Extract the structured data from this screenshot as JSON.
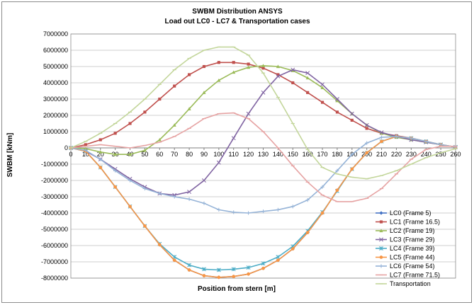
{
  "chart_data": {
    "type": "line",
    "title": "SWBM Distribution ANSYS",
    "subtitle": "Load out LC0 - LC7 & Transportation cases",
    "xlabel": "Position from stern [m]",
    "ylabel": "SWBM [kNm]",
    "xlim": [
      0,
      260
    ],
    "ylim": [
      -8000000,
      7000000
    ],
    "x_ticks": [
      0,
      10,
      20,
      30,
      40,
      50,
      60,
      70,
      80,
      90,
      100,
      110,
      120,
      130,
      140,
      150,
      160,
      170,
      180,
      190,
      200,
      210,
      220,
      230,
      240,
      250,
      260
    ],
    "y_ticks": [
      7000000,
      6000000,
      5000000,
      4000000,
      3000000,
      2000000,
      1000000,
      0,
      -1000000,
      -2000000,
      -3000000,
      -4000000,
      -5000000,
      -6000000,
      -7000000,
      -8000000
    ],
    "grid": true,
    "legend_position": "bottom-right",
    "series": [
      {
        "name": "LC0 (Frame 5)",
        "color": "#4472c4",
        "marker": "diamond",
        "x": [
          0,
          10,
          20,
          30,
          40,
          50,
          60,
          70,
          80,
          90,
          100,
          110,
          120,
          130,
          140,
          150,
          160,
          170,
          180,
          190,
          200,
          210,
          220,
          230,
          240,
          250,
          260
        ],
        "y": [
          0,
          -200000,
          -1200000,
          -2400000,
          -3600000,
          -4800000,
          -5950000,
          -6900000,
          -7500000,
          -7850000,
          -7950000,
          -7900000,
          -7750000,
          -7400000,
          -6900000,
          -6200000,
          -5200000,
          -4000000,
          -2600000,
          -1300000,
          -300000,
          400000,
          700000,
          600000,
          400000,
          200000,
          50000
        ]
      },
      {
        "name": "LC1 (Frame 16.5)",
        "color": "#c0504d",
        "marker": "square",
        "x": [
          0,
          10,
          20,
          30,
          40,
          50,
          60,
          70,
          80,
          90,
          100,
          110,
          120,
          130,
          140,
          150,
          160,
          170,
          180,
          190,
          200,
          210,
          220,
          230,
          240,
          250,
          260
        ],
        "y": [
          0,
          200000,
          500000,
          900000,
          1500000,
          2200000,
          3000000,
          3800000,
          4500000,
          5000000,
          5250000,
          5250000,
          5150000,
          4900000,
          4500000,
          4000000,
          3400000,
          2800000,
          2200000,
          1700000,
          1200000,
          900000,
          750000,
          600000,
          400000,
          200000,
          50000
        ]
      },
      {
        "name": "LC2 (Frame 19)",
        "color": "#9bbb59",
        "marker": "triangle",
        "x": [
          0,
          10,
          20,
          30,
          40,
          50,
          60,
          70,
          80,
          90,
          100,
          110,
          120,
          130,
          140,
          150,
          160,
          170,
          180,
          190,
          200,
          210,
          220,
          230,
          240,
          250,
          260
        ],
        "y": [
          0,
          -50000,
          -250000,
          -400000,
          -400000,
          -150000,
          500000,
          1400000,
          2400000,
          3400000,
          4150000,
          4650000,
          4950000,
          5050000,
          5000000,
          4750000,
          4300000,
          3700000,
          2900000,
          2100000,
          1400000,
          900000,
          650000,
          500000,
          350000,
          200000,
          50000
        ]
      },
      {
        "name": "LC3 (Frame 29)",
        "color": "#8064a2",
        "marker": "x",
        "x": [
          0,
          10,
          20,
          30,
          40,
          50,
          60,
          70,
          80,
          90,
          100,
          110,
          120,
          130,
          140,
          150,
          160,
          170,
          180,
          190,
          200,
          210,
          220,
          230,
          240,
          250,
          260
        ],
        "y": [
          0,
          -200000,
          -700000,
          -1300000,
          -1900000,
          -2400000,
          -2800000,
          -2900000,
          -2700000,
          -2000000,
          -900000,
          600000,
          2100000,
          3400000,
          4400000,
          4800000,
          4600000,
          3900000,
          3000000,
          2100000,
          1400000,
          950000,
          700000,
          500000,
          350000,
          200000,
          50000
        ]
      },
      {
        "name": "LC4 (Frame 39)",
        "color": "#4bacc6",
        "marker": "star",
        "x": [
          0,
          10,
          20,
          30,
          40,
          50,
          60,
          70,
          80,
          90,
          100,
          110,
          120,
          130,
          140,
          150,
          160,
          170,
          180,
          190,
          200,
          210,
          220,
          230,
          240,
          250,
          260
        ],
        "y": [
          0,
          -200000,
          -1200000,
          -2400000,
          -3600000,
          -4800000,
          -5900000,
          -6700000,
          -7200000,
          -7450000,
          -7500000,
          -7450000,
          -7350000,
          -7100000,
          -6700000,
          -6050000,
          -5100000,
          -3950000,
          -2650000,
          -1300000,
          -300000,
          400000,
          700000,
          600000,
          400000,
          200000,
          50000
        ]
      },
      {
        "name": "LC5 (Frame 44)",
        "color": "#f79646",
        "marker": "circle",
        "x": [
          0,
          10,
          20,
          30,
          40,
          50,
          60,
          70,
          80,
          90,
          100,
          110,
          120,
          130,
          140,
          150,
          160,
          170,
          180,
          190,
          200,
          210,
          220,
          230,
          240,
          250,
          260
        ],
        "y": [
          0,
          -200000,
          -1200000,
          -2400000,
          -3600000,
          -4800000,
          -5950000,
          -6900000,
          -7500000,
          -7850000,
          -7950000,
          -7900000,
          -7750000,
          -7400000,
          -6900000,
          -6200000,
          -5200000,
          -4000000,
          -2600000,
          -1300000,
          -300000,
          400000,
          700000,
          600000,
          400000,
          200000,
          50000
        ]
      },
      {
        "name": "LC6 (Frame 54)",
        "color": "#95b3d7",
        "marker": "plus",
        "x": [
          0,
          10,
          20,
          30,
          40,
          50,
          60,
          70,
          80,
          90,
          100,
          110,
          120,
          130,
          140,
          150,
          160,
          170,
          180,
          190,
          200,
          210,
          220,
          230,
          240,
          250,
          260
        ],
        "y": [
          0,
          -150000,
          -700000,
          -1400000,
          -2000000,
          -2500000,
          -2800000,
          -3000000,
          -3150000,
          -3400000,
          -3800000,
          -3950000,
          -4000000,
          -3900000,
          -3800000,
          -3600000,
          -3200000,
          -2400000,
          -1400000,
          -400000,
          300000,
          650000,
          700000,
          600000,
          400000,
          200000,
          50000
        ]
      },
      {
        "name": "LC7 (Frame 71.5)",
        "color": "#e6a3a3",
        "marker": "dash",
        "x": [
          0,
          10,
          20,
          30,
          40,
          50,
          60,
          70,
          80,
          90,
          100,
          110,
          120,
          130,
          140,
          150,
          160,
          170,
          180,
          190,
          200,
          210,
          220,
          230,
          240,
          250,
          260
        ],
        "y": [
          0,
          100000,
          200000,
          100000,
          0,
          150000,
          350000,
          700000,
          1200000,
          1800000,
          2100000,
          2150000,
          1800000,
          1000000,
          0,
          -1100000,
          -2100000,
          -2900000,
          -3300000,
          -3300000,
          -3100000,
          -2500000,
          -1600000,
          -700000,
          -100000,
          100000,
          100000
        ]
      },
      {
        "name": "Transportation",
        "color": "#c3d69b",
        "marker": "dash",
        "x": [
          0,
          10,
          20,
          30,
          40,
          50,
          60,
          70,
          80,
          90,
          100,
          110,
          120,
          130,
          140,
          150,
          160,
          170,
          180,
          190,
          200,
          210,
          220,
          230,
          240,
          250,
          260
        ],
        "y": [
          0,
          400000,
          900000,
          1500000,
          2200000,
          3000000,
          3900000,
          4800000,
          5500000,
          6000000,
          6200000,
          6200000,
          5700000,
          4600000,
          3100000,
          1500000,
          -100000,
          -1200000,
          -1600000,
          -1800000,
          -1900000,
          -1700000,
          -1400000,
          -1000000,
          -600000,
          -300000,
          -50000
        ]
      }
    ]
  }
}
